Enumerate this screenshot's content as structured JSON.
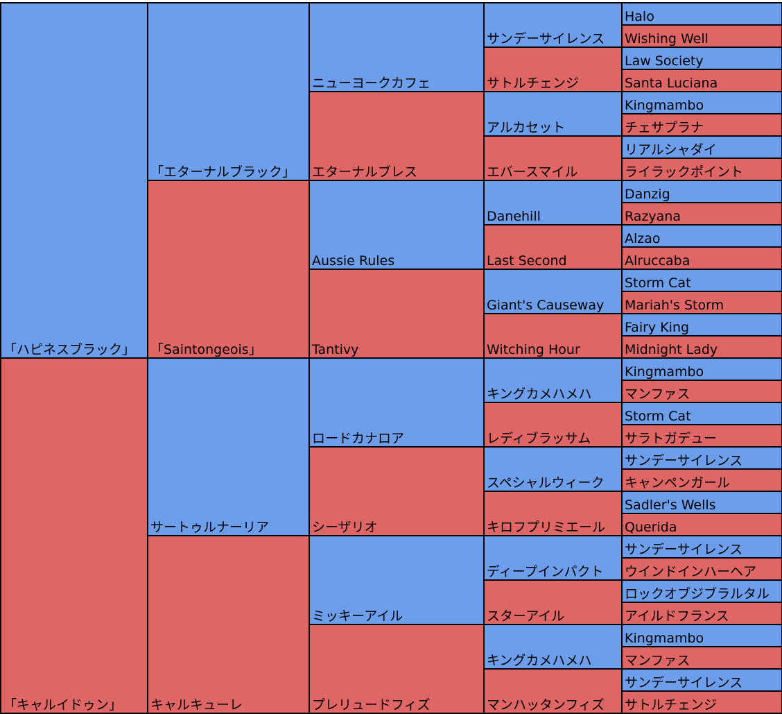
{
  "colors": {
    "sire": "#6d9eeb",
    "dam": "#e06666",
    "border": "#000000"
  },
  "pedigree": {
    "g1": [
      "「ハピネスブラック」",
      "「キャルイドゥン」"
    ],
    "g2": [
      "「エターナルブラック」",
      "「Saintongeois」",
      "サートゥルナーリア",
      "キャルキューレ"
    ],
    "g3": [
      "ニューヨークカフェ",
      "エターナルブレス",
      "Aussie Rules",
      "Tantivy",
      "ロードカナロア",
      "シーザリオ",
      "ミッキーアイル",
      "プレリュードフィズ"
    ],
    "g4": [
      "サンデーサイレンス",
      "サトルチェンジ",
      "アルカセット",
      "エバースマイル",
      "Danehill",
      "Last Second",
      "Giant's Causeway",
      "Witching Hour",
      "キングカメハメハ",
      "レディブラッサム",
      "スペシャルウィーク",
      "キロフプリミエール",
      "ディープインパクト",
      "スターアイル",
      "キングカメハメハ",
      "マンハッタンフィズ"
    ],
    "g5": [
      "Halo",
      "Wishing Well",
      "Law Society",
      "Santa Luciana",
      "Kingmambo",
      "チェサプラナ",
      "リアルシャダイ",
      "ライラックポイント",
      "Danzig",
      "Razyana",
      "Alzao",
      "Alruccaba",
      "Storm Cat",
      "Mariah's Storm",
      "Fairy King",
      "Midnight Lady",
      "Kingmambo",
      "マンファス",
      "Storm Cat",
      "サラトガデュー",
      "サンデーサイレンス",
      "キャンペンガール",
      "Sadler's Wells",
      "Querida",
      "サンデーサイレンス",
      "ウインドインハーヘア",
      "ロックオブジブラルタル",
      "アイルドフランス",
      "Kingmambo",
      "マンファス",
      "サンデーサイレンス",
      "サトルチェンジ"
    ]
  }
}
